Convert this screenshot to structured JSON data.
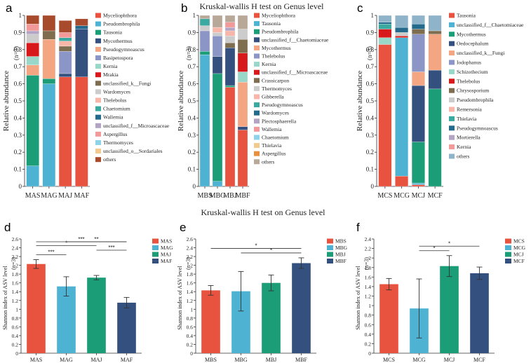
{
  "figure": {
    "mid_title": "Kruskal-wallis H test on Genus level"
  },
  "chart_data": [
    {
      "panel": "a",
      "type": "bar",
      "stacked": true,
      "title": "",
      "ylabel": "Relative abundance",
      "n_label": "(n=3)",
      "ylim": [
        0,
        1
      ],
      "yticks": [
        "0",
        "0.1",
        "0.2",
        "0.3",
        "0.4",
        "0.5",
        "0.6",
        "0.7",
        "0.8",
        "0.9",
        "1"
      ],
      "categories": [
        "MAS",
        "MAG",
        "MAJ",
        "MAF"
      ],
      "legend_position": "right",
      "series": [
        {
          "name": "Myceliophthora",
          "color": "#e8533f",
          "values": [
            0.0,
            0.0,
            0.64,
            0.64
          ]
        },
        {
          "name": "Pseudombrophila",
          "color": "#4eb3d3",
          "values": [
            0.12,
            0.6,
            0.0,
            0.0
          ]
        },
        {
          "name": "Tausonia",
          "color": "#1b9e77",
          "values": [
            0.53,
            0.03,
            0.0,
            0.0
          ]
        },
        {
          "name": "Mycothermus",
          "color": "#34507f",
          "values": [
            0.0,
            0.0,
            0.02,
            0.28
          ]
        },
        {
          "name": "Pseudogymnoascus",
          "color": "#f4a582",
          "values": [
            0.06,
            0.23,
            0.0,
            0.0
          ]
        },
        {
          "name": "Basipetospora",
          "color": "#8c96c6",
          "values": [
            0.0,
            0.0,
            0.13,
            0.0
          ]
        },
        {
          "name": "Kernia",
          "color": "#99d8c9",
          "values": [
            0.05,
            0.0,
            0.0,
            0.0
          ]
        },
        {
          "name": "Mrakia",
          "color": "#d7191c",
          "values": [
            0.08,
            0.0,
            0.0,
            0.0
          ]
        },
        {
          "name": "unclassified_k__Fungi",
          "color": "#7f6d4f",
          "values": [
            0.0,
            0.05,
            0.03,
            0.0
          ]
        },
        {
          "name": "Wardomyces",
          "color": "#cccccc",
          "values": [
            0.05,
            0.0,
            0.0,
            0.0
          ]
        },
        {
          "name": "Thelebolus",
          "color": "#f7b6a8",
          "values": [
            0.0,
            0.0,
            0.03,
            0.0
          ]
        },
        {
          "name": "Chaetomium",
          "color": "#3aa99f",
          "values": [
            0.0,
            0.0,
            0.02,
            0.0
          ]
        },
        {
          "name": "Wallemia",
          "color": "#236a8c",
          "values": [
            0.0,
            0.0,
            0.0,
            0.02
          ]
        },
        {
          "name": "unclassified_f__Microascaceae",
          "color": "#b3a4c4",
          "values": [
            0.02,
            0.0,
            0.0,
            0.0
          ]
        },
        {
          "name": "Aspergillus",
          "color": "#f29a9a",
          "values": [
            0.04,
            0.0,
            0.03,
            0.0
          ]
        },
        {
          "name": "Thermomyces",
          "color": "#8fd3e8",
          "values": [
            0.0,
            0.0,
            0.0,
            0.0
          ]
        },
        {
          "name": "unclassified_o__Sordariales",
          "color": "#f2c98f",
          "values": [
            0.0,
            0.0,
            0.0,
            0.0
          ]
        },
        {
          "name": "others",
          "color": "#a84a2c",
          "values": [
            0.05,
            0.09,
            0.07,
            0.04
          ]
        }
      ]
    },
    {
      "panel": "b",
      "type": "bar",
      "stacked": true,
      "title": "Kruskal-wallis H test on Genus level",
      "ylabel": "Relative abundance",
      "n_label": "(n=3)",
      "ylim": [
        0,
        1
      ],
      "yticks": [
        "0",
        "0.1",
        "0.2",
        "0.3",
        "0.4",
        "0.5",
        "0.6",
        "0.7",
        "0.8",
        "0.9",
        "1"
      ],
      "categories": [
        "MBS",
        "MBG",
        "MBJ",
        "MBF"
      ],
      "legend_position": "right",
      "series": [
        {
          "name": "Myceliophthora",
          "color": "#e8533f",
          "values": [
            0.0,
            0.0,
            0.58,
            0.33
          ]
        },
        {
          "name": "Tausonia",
          "color": "#4eb3d3",
          "values": [
            0.77,
            0.03,
            0.0,
            0.0
          ]
        },
        {
          "name": "Pseudombrophila",
          "color": "#1b9e77",
          "values": [
            0.02,
            0.63,
            0.01,
            0.0
          ]
        },
        {
          "name": "unclassified_f__Chaetomiaceae",
          "color": "#34507f",
          "values": [
            0.0,
            0.1,
            0.22,
            0.02
          ]
        },
        {
          "name": "Mycothermus",
          "color": "#f4a582",
          "values": [
            0.0,
            0.0,
            0.0,
            0.26
          ]
        },
        {
          "name": "Thelebolus",
          "color": "#8c96c6",
          "values": [
            0.12,
            0.12,
            0.0,
            0.0
          ]
        },
        {
          "name": "Kernia",
          "color": "#99d8c9",
          "values": [
            0.0,
            0.0,
            0.0,
            0.06
          ]
        },
        {
          "name": "unclassified_f__Microascaceae",
          "color": "#d7191c",
          "values": [
            0.0,
            0.0,
            0.0,
            0.11
          ]
        },
        {
          "name": "Crassicarpon",
          "color": "#7f6d4f",
          "values": [
            0.0,
            0.0,
            0.03,
            0.08
          ]
        },
        {
          "name": "Thermomyces",
          "color": "#cccccc",
          "values": [
            0.03,
            0.02,
            0.04,
            0.06
          ]
        },
        {
          "name": "Gibberella",
          "color": "#f7b6a8",
          "values": [
            0.0,
            0.03,
            0.03,
            0.0
          ]
        },
        {
          "name": "Pseudogymnoascus",
          "color": "#3aa99f",
          "values": [
            0.04,
            0.0,
            0.0,
            0.0
          ]
        },
        {
          "name": "Wardomyces",
          "color": "#236a8c",
          "values": [
            0.0,
            0.0,
            0.0,
            0.0
          ]
        },
        {
          "name": "Plectosphaerella",
          "color": "#b3a4c4",
          "values": [
            0.0,
            0.0,
            0.02,
            0.0
          ]
        },
        {
          "name": "Wallemia",
          "color": "#f29a9a",
          "values": [
            0.0,
            0.0,
            0.03,
            0.0
          ]
        },
        {
          "name": "Chaetomium",
          "color": "#8fd3e8",
          "values": [
            0.0,
            0.0,
            0.0,
            0.0
          ]
        },
        {
          "name": "Thielavia",
          "color": "#f2c98f",
          "values": [
            0.0,
            0.0,
            0.0,
            0.0
          ]
        },
        {
          "name": "Aspergillus",
          "color": "#e89040",
          "values": [
            0.0,
            0.0,
            0.0,
            0.0
          ]
        },
        {
          "name": "others",
          "color": "#b8a898",
          "values": [
            0.02,
            0.07,
            0.04,
            0.08
          ]
        }
      ]
    },
    {
      "panel": "c",
      "type": "bar",
      "stacked": true,
      "title": "",
      "ylabel": "Relative abundance",
      "n_label": "(n=3)",
      "ylim": [
        0,
        1
      ],
      "yticks": [
        "0",
        "0.1",
        "0.2",
        "0.3",
        "0.4",
        "0.5",
        "0.6",
        "0.7",
        "0.8",
        "0.9",
        "1"
      ],
      "categories": [
        "MCS",
        "MCG",
        "MCJ",
        "MCF"
      ],
      "legend_position": "right",
      "series": [
        {
          "name": "Tausonia",
          "color": "#e8533f",
          "values": [
            0.83,
            0.06,
            0.01,
            0.0
          ]
        },
        {
          "name": "unclassified_f__Chaetomiaceae",
          "color": "#4eb3d3",
          "values": [
            0.0,
            0.81,
            0.01,
            0.0
          ]
        },
        {
          "name": "Mycothermus",
          "color": "#1b9e77",
          "values": [
            0.0,
            0.0,
            0.24,
            0.57
          ]
        },
        {
          "name": "Oedocephalum",
          "color": "#34507f",
          "values": [
            0.0,
            0.0,
            0.33,
            0.11
          ]
        },
        {
          "name": "unclassified_k__Fungi",
          "color": "#f4a582",
          "values": [
            0.0,
            0.0,
            0.08,
            0.21
          ]
        },
        {
          "name": "Iodophanus",
          "color": "#8c96c6",
          "values": [
            0.0,
            0.0,
            0.22,
            0.0
          ]
        },
        {
          "name": "Schizothecium",
          "color": "#99d8c9",
          "values": [
            0.04,
            0.0,
            0.0,
            0.0
          ]
        },
        {
          "name": "Thelebolus",
          "color": "#d7191c",
          "values": [
            0.05,
            0.01,
            0.0,
            0.0
          ]
        },
        {
          "name": "Chrysosporium",
          "color": "#7f6d4f",
          "values": [
            0.0,
            0.0,
            0.03,
            0.02
          ]
        },
        {
          "name": "Pseudombrophila",
          "color": "#cccccc",
          "values": [
            0.0,
            0.02,
            0.0,
            0.0
          ]
        },
        {
          "name": "Remersonia",
          "color": "#f7b6a8",
          "values": [
            0.0,
            0.0,
            0.0,
            0.0
          ]
        },
        {
          "name": "Thielavia",
          "color": "#3aa99f",
          "values": [
            0.03,
            0.0,
            0.0,
            0.0
          ]
        },
        {
          "name": "Pseudogymnoascus",
          "color": "#236a8c",
          "values": [
            0.01,
            0.03,
            0.03,
            0.0
          ]
        },
        {
          "name": "Mortierella",
          "color": "#b3a4c4",
          "values": [
            0.0,
            0.0,
            0.0,
            0.0
          ]
        },
        {
          "name": "Kernia",
          "color": "#f29a9a",
          "values": [
            0.0,
            0.0,
            0.0,
            0.0
          ]
        },
        {
          "name": "others",
          "color": "#8fb3c8",
          "values": [
            0.04,
            0.07,
            0.05,
            0.09
          ]
        }
      ]
    },
    {
      "panel": "d",
      "type": "bar",
      "title": "",
      "ylabel": "Shannon index of ASV level",
      "n_label": "(n=3)",
      "ylim": [
        0,
        2.6
      ],
      "yticks": [
        "0",
        "0.2",
        "0.4",
        "0.6",
        "0.8",
        "1",
        "1.2",
        "1.4",
        "1.6",
        "1.8",
        "2",
        "2.2",
        "2.4",
        "2.6"
      ],
      "categories": [
        "MAS",
        "MAG",
        "MAJ",
        "MAF"
      ],
      "values": [
        2.03,
        1.52,
        1.72,
        1.15
      ],
      "errors": [
        0.1,
        0.22,
        0.05,
        0.12
      ],
      "colors": [
        "#e8533f",
        "#4eb3d3",
        "#1b9e77",
        "#34507f"
      ],
      "legend": [
        "MAS",
        "MAG",
        "MAJ",
        "MAF"
      ],
      "legend_position": "top-right",
      "significance": [
        {
          "from": 0,
          "to": 1,
          "label": "***"
        },
        {
          "from": 0,
          "to": 2,
          "label": "*"
        },
        {
          "from": 0,
          "to": 3,
          "label": "***"
        },
        {
          "from": 1,
          "to": 3,
          "label": "**"
        },
        {
          "from": 2,
          "to": 3,
          "label": "***"
        }
      ]
    },
    {
      "panel": "e",
      "type": "bar",
      "title": "",
      "ylabel": "Shannon index of ASV level",
      "n_label": "(n=3)",
      "ylim": [
        0,
        2.6
      ],
      "yticks": [
        "0",
        "0.2",
        "0.4",
        "0.6",
        "0.8",
        "1",
        "1.2",
        "1.4",
        "1.6",
        "1.8",
        "2",
        "2.2",
        "2.4",
        "2.6"
      ],
      "categories": [
        "MBS",
        "MBG",
        "MBJ",
        "MBF"
      ],
      "values": [
        1.43,
        1.41,
        1.6,
        2.05
      ],
      "errors": [
        0.11,
        0.45,
        0.18,
        0.12
      ],
      "colors": [
        "#e8533f",
        "#4eb3d3",
        "#1b9e77",
        "#34507f"
      ],
      "legend": [
        "MBS",
        "MBG",
        "MBJ",
        "MBF"
      ],
      "legend_position": "top-right",
      "significance": [
        {
          "from": 0,
          "to": 3,
          "label": "*"
        },
        {
          "from": 1,
          "to": 3,
          "label": "*"
        }
      ]
    },
    {
      "panel": "f",
      "type": "bar",
      "title": "",
      "ylabel": "Shannon index of ASV level",
      "n_label": "(n=3)",
      "ylim": [
        0,
        2.4
      ],
      "yticks": [
        "0",
        "0.2",
        "0.4",
        "0.6",
        "0.8",
        "1",
        "1.2",
        "1.4",
        "1.6",
        "1.8",
        "2",
        "2.2",
        "2.4"
      ],
      "categories": [
        "MCS",
        "MCG",
        "MCJ",
        "MCF"
      ],
      "values": [
        1.45,
        0.94,
        1.83,
        1.68
      ],
      "errors": [
        0.12,
        0.62,
        0.22,
        0.13
      ],
      "colors": [
        "#e8533f",
        "#4eb3d3",
        "#1b9e77",
        "#34507f"
      ],
      "legend": [
        "MCS",
        "MCG",
        "MCJ",
        "MCF"
      ],
      "legend_position": "top-right",
      "significance": [
        {
          "from": 1,
          "to": 2,
          "label": "*"
        },
        {
          "from": 1,
          "to": 3,
          "label": "*"
        }
      ]
    }
  ]
}
